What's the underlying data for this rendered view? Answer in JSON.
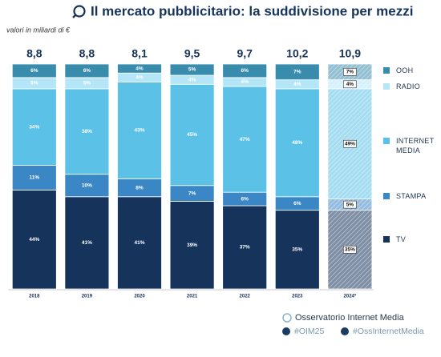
{
  "chart_data": {
    "type": "stacked_bar",
    "title": "Il mercato pubblicitario: la suddivisione per mezzi",
    "subtitle": "valori in miliardi di €",
    "categories": [
      "2018",
      "2019",
      "2020",
      "2021",
      "2022",
      "2023",
      "2024*"
    ],
    "totals": [
      {
        "value": 8.8,
        "label": "8,8"
      },
      {
        "value": 8.8,
        "label": "8,8"
      },
      {
        "value": 8.1,
        "label": "8,1"
      },
      {
        "value": 9.5,
        "label": "9,5"
      },
      {
        "value": 9.7,
        "label": "9,7"
      },
      {
        "value": 10.2,
        "label": "10,2"
      },
      {
        "value": 10.9,
        "label": "10,9"
      }
    ],
    "ylim": [
      0,
      100
    ],
    "series": [
      {
        "name": "TV",
        "color": "#15335b",
        "values": [
          44,
          41,
          41,
          39,
          37,
          35,
          35
        ],
        "value_labels": [
          "44%",
          "41%",
          "41%",
          "39%",
          "37%",
          "35%",
          "35%"
        ]
      },
      {
        "name": "STAMPA",
        "color": "#3b87c5",
        "values": [
          11,
          10,
          8,
          7,
          6,
          6,
          5
        ],
        "value_labels": [
          "11%",
          "10%",
          "8%",
          "7%",
          "6%",
          "6%",
          "5%"
        ]
      },
      {
        "name": "INTERNET MEDIA",
        "color": "#5bc1e7",
        "values": [
          34,
          38,
          43,
          45,
          47,
          48,
          49
        ],
        "value_labels": [
          "34%",
          "38%",
          "43%",
          "45%",
          "47%",
          "48%",
          "49%"
        ]
      },
      {
        "name": "RADIO",
        "color": "#b4e6f7",
        "values": [
          5,
          5,
          4,
          4,
          4,
          4,
          4
        ],
        "value_labels": [
          "5%",
          "5%",
          "4%",
          "4%",
          "4%",
          "4%",
          "4%"
        ]
      },
      {
        "name": "OOH",
        "color": "#3a8cad",
        "values": [
          6,
          6,
          4,
          5,
          6,
          7,
          7
        ],
        "value_labels": [
          "6%",
          "6%",
          "4%",
          "5%",
          "6%",
          "7%",
          "7%"
        ]
      }
    ]
  },
  "footer": {
    "brand": "Osservatorio Internet Media",
    "hashtags": [
      "#OIM25",
      "#OssInternetMedia"
    ]
  }
}
